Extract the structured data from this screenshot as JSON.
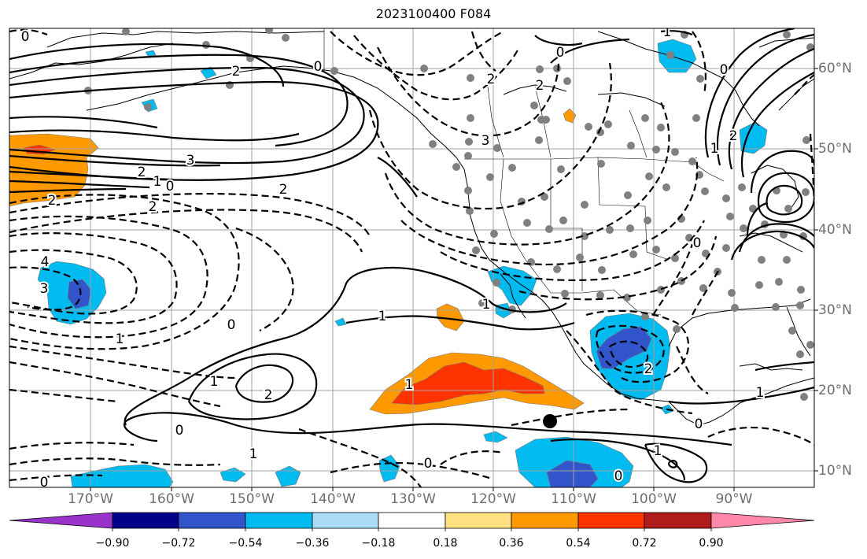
{
  "title": "2023100400 F084",
  "axes": {
    "longitude_labels": [
      "170°W",
      "160°W",
      "150°W",
      "140°W",
      "130°W",
      "120°W",
      "110°W",
      "100°W",
      "90°W"
    ],
    "latitude_labels": [
      "60°N",
      "50°N",
      "40°N",
      "30°N",
      "20°N",
      "10°N"
    ]
  },
  "colorbar": {
    "tick_labels": [
      "−0.90",
      "−0.72",
      "−0.54",
      "−0.36",
      "−0.18",
      "0.18",
      "0.36",
      "0.54",
      "0.72",
      "0.90"
    ],
    "colors": [
      "#9933cc",
      "#000088",
      "#3355cc",
      "#00bbf0",
      "#aadcf8",
      "#ffffff",
      "#ffe080",
      "#ff9900",
      "#ff3300",
      "#b01c1c",
      "#ff88aa"
    ]
  },
  "contour_labels": {
    "jet_3": "3",
    "jet_2a": "2",
    "jet_1": "1",
    "jet_0": "0",
    "jet_2b": "2",
    "jet_m2a": "2",
    "jet_m2b": "2",
    "west_m4": "4",
    "west_m3": "3",
    "west_m1": "1",
    "mid_0": "0",
    "sub_1": "1",
    "sub_2": "2",
    "sub_1b": "1",
    "sub_0": "0",
    "sub_1c": "1",
    "gom_2": "2",
    "mx_1": "1",
    "baja_1": "1",
    "trop_0": "0",
    "trop_1": "1",
    "trop_0b": "0",
    "trop_0c": "0",
    "trop_1b": "1",
    "trop_0d": "0",
    "trop_1c": "1",
    "trop_0e": "0",
    "ak_0": "0",
    "ak_2": "2",
    "ak_0b": "0",
    "can_m2": "2",
    "can_m2b": "2",
    "can_m3": "3",
    "gl_1": "1",
    "gl_2": "2",
    "gl_0": "0",
    "hb_1": "1",
    "west_0": "0",
    "yuk_0": "0"
  },
  "marker_color": "#000000"
}
